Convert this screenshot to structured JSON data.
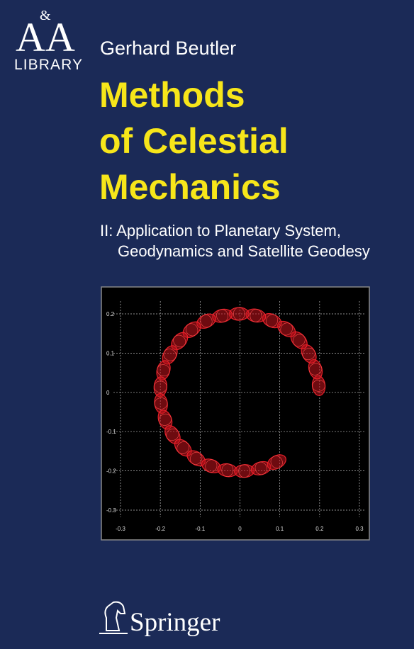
{
  "logo": {
    "letters": [
      "A",
      "&",
      "A"
    ],
    "series": "LIBRARY"
  },
  "author": "Gerhard Beutler",
  "title": [
    "Methods",
    "of Celestial",
    "Mechanics"
  ],
  "subtitle": [
    "II: Application to Planetary System,",
    "Geodynamics and Satellite Geodesy"
  ],
  "cover_plot": {
    "xlim": [
      -0.3,
      0.3
    ],
    "ylim": [
      -0.3,
      0.2
    ],
    "xticks": [
      -0.3,
      -0.2,
      -0.1,
      0,
      0.1,
      0.2,
      0.3
    ],
    "yticks": [
      0.2,
      0.1,
      0,
      -0.1,
      -0.2,
      -0.3
    ],
    "grid": true
  },
  "publisher": "Springer"
}
